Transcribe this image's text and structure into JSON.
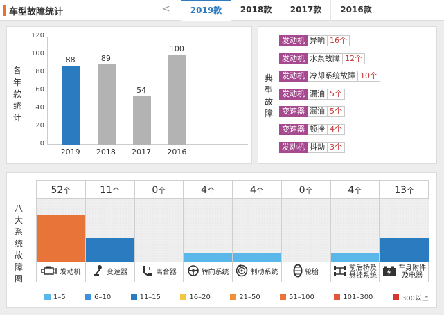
{
  "header": {
    "title": "车型故障统计",
    "prev_arrow": "<",
    "tabs": [
      {
        "label": "2019款",
        "active": true
      },
      {
        "label": "2018款",
        "active": false
      },
      {
        "label": "2017款",
        "active": false
      },
      {
        "label": "2016款",
        "active": false
      }
    ]
  },
  "chart_panel": {
    "label_chars": [
      "各",
      "年",
      "款",
      "统",
      "计"
    ]
  },
  "chart_data": {
    "type": "bar",
    "categories": [
      "2019",
      "2018",
      "2017",
      "2016"
    ],
    "values": [
      88,
      89,
      54,
      100
    ],
    "bar_colors": [
      "#2b7bc0",
      "#b3b3b3",
      "#b3b3b3",
      "#b3b3b3"
    ],
    "yticks": [
      "0",
      "20",
      "40",
      "60",
      "80",
      "100",
      "120"
    ],
    "ylim": [
      0,
      120
    ],
    "grid": true
  },
  "fault_panel": {
    "label_chars": [
      "典",
      "型",
      "故",
      "障"
    ],
    "items": [
      {
        "category": "发动机",
        "name": "异响",
        "count": "16个"
      },
      {
        "category": "发动机",
        "name": "水泵故障",
        "count": "12个"
      },
      {
        "category": "发动机",
        "name": "冷却系统故障",
        "count": "10个"
      },
      {
        "category": "发动机",
        "name": "漏油",
        "count": "5个"
      },
      {
        "category": "变速器",
        "name": "漏油",
        "count": "5个"
      },
      {
        "category": "变速器",
        "name": "顿挫",
        "count": "4个"
      },
      {
        "category": "发动机",
        "name": "抖动",
        "count": "3个"
      }
    ]
  },
  "system_panel": {
    "label_chars": [
      "八",
      "大",
      "系",
      "统",
      "故",
      "障",
      "图"
    ],
    "unit": "个",
    "systems": [
      {
        "name": "发动机",
        "count": "52",
        "icon": "engine-icon",
        "fill_level": 0.75,
        "fill_color": "#e8743a"
      },
      {
        "name": "变速器",
        "count": "11",
        "icon": "gear-shift-icon",
        "fill_level": 0.38,
        "fill_color": "#2b7bc0"
      },
      {
        "name": "离合器",
        "count": "0",
        "icon": "clutch-pedal-icon",
        "fill_level": 0,
        "fill_color": "#2b7bc0"
      },
      {
        "name": "转向系统",
        "count": "4",
        "icon": "steering-wheel-icon",
        "fill_level": 0.13,
        "fill_color": "#5ab7ea"
      },
      {
        "name": "制动系统",
        "count": "4",
        "icon": "brake-disc-icon",
        "fill_level": 0.13,
        "fill_color": "#5ab7ea"
      },
      {
        "name": "轮胎",
        "count": "0",
        "icon": "tire-icon",
        "fill_level": 0,
        "fill_color": "#5ab7ea"
      },
      {
        "name": "前后桥及\n悬挂系统",
        "count": "4",
        "icon": "axle-icon",
        "fill_level": 0.13,
        "fill_color": "#5ab7ea"
      },
      {
        "name": "车身附件\n及电器",
        "count": "13",
        "icon": "battery-icon",
        "fill_level": 0.38,
        "fill_color": "#2b7bc0"
      }
    ]
  },
  "legend": [
    {
      "label": "1–5",
      "color": "#5ab7ea"
    },
    {
      "label": "6–10",
      "color": "#3d8fe0"
    },
    {
      "label": "11–15",
      "color": "#2b7bc0"
    },
    {
      "label": "16–20",
      "color": "#f2c744"
    },
    {
      "label": "21–50",
      "color": "#f0913a"
    },
    {
      "label": "51–100",
      "color": "#e8743a"
    },
    {
      "label": "101–300",
      "color": "#e2563a"
    },
    {
      "label": "300以上",
      "color": "#d9352f"
    }
  ]
}
